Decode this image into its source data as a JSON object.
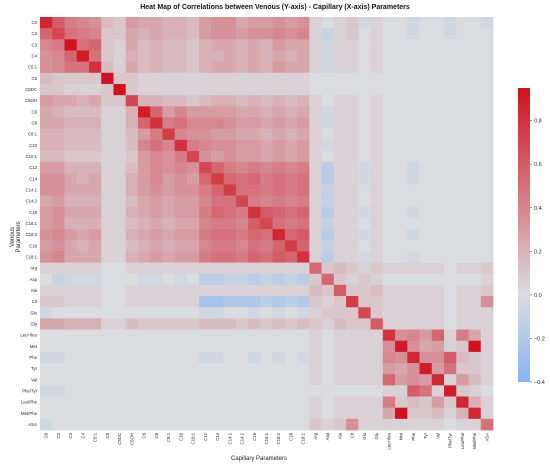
{
  "chart_data": {
    "type": "heatmap",
    "title": "Heat Map of Correlations between Venous (Y-axis) - Capillary (X-axis) Parameters",
    "xlabel": "Capillary Parameters",
    "ylabel": "Venous Parameters",
    "x_labels": [
      "C0",
      "C2",
      "C3",
      "C4",
      "C5:1",
      "C5",
      "C5DC",
      "C5OH",
      "C6",
      "C8",
      "C8:1",
      "C10",
      "C10:1",
      "C12",
      "C14",
      "C14:1",
      "C14:2",
      "C16",
      "C16:1",
      "C18:2",
      "C18",
      "C18:1",
      "Arg",
      "Asp",
      "Ala",
      "Cit",
      "Glu",
      "Gly",
      "Leu+Ileu",
      "Met",
      "Phe",
      "Tyr",
      "Val",
      "Phe/Tyr",
      "Leu/Phe",
      "Met/Phe",
      "ASA"
    ],
    "y_labels": [
      "C0",
      "C2",
      "C3",
      "C4",
      "C5:1",
      "C5",
      "C5DC",
      "C5OH",
      "C6",
      "C8",
      "C8:1",
      "C10",
      "C10:1",
      "C12",
      "C14",
      "C14:1",
      "C14:2",
      "C16",
      "C16:1",
      "C18:2",
      "C18",
      "C18:1",
      "Arg",
      "Asp",
      "Ala",
      "Cit",
      "Glu",
      "Gly",
      "Leu+Ileu",
      "Met",
      "Phe",
      "Tyr",
      "Val",
      "Phe/Tyr",
      "Leu/Phe",
      "Met/Phe",
      "ASA"
    ],
    "colorbar_ticks": [
      -0.4,
      -0.2,
      0.0,
      0.2,
      0.4,
      0.6,
      0.8
    ],
    "colorbar_ticklabels": [
      "−0.4",
      "−0.2",
      "0.0",
      "0.2",
      "0.4",
      "0.6",
      "0.8"
    ],
    "vmin": -0.4,
    "vmax": 0.95,
    "colormap": [
      "#87b4f2",
      "#dadcdf",
      "#d0111f"
    ],
    "values": [
      [
        0.85,
        0.6,
        0.45,
        0.4,
        0.35,
        0.15,
        0.1,
        0.3,
        0.25,
        0.25,
        0.2,
        0.2,
        0.15,
        0.3,
        0.35,
        0.35,
        0.25,
        0.3,
        0.3,
        0.35,
        0.3,
        0.35,
        0.05,
        0.0,
        0.05,
        0.1,
        -0.05,
        0.05,
        0,
        0,
        -0.05,
        0,
        0,
        -0.05,
        0,
        0,
        -0.05
      ],
      [
        0.55,
        0.7,
        0.5,
        0.45,
        0.4,
        0.1,
        0.1,
        0.25,
        0.2,
        0.25,
        0.2,
        0.2,
        0.15,
        0.3,
        0.35,
        0.35,
        0.3,
        0.35,
        0.35,
        0.4,
        0.35,
        0.4,
        0.05,
        -0.1,
        0.05,
        0.1,
        0,
        0.05,
        0,
        0,
        -0.05,
        0,
        0,
        -0.05,
        0,
        0,
        0
      ],
      [
        0.4,
        0.45,
        0.95,
        0.5,
        0.55,
        0.1,
        0.05,
        0.25,
        0.15,
        0.2,
        0.15,
        0.15,
        0.1,
        0.2,
        0.25,
        0.25,
        0.2,
        0.25,
        0.2,
        0.3,
        0.25,
        0.25,
        0.05,
        -0.05,
        0.05,
        0.05,
        0,
        0.05,
        0,
        0,
        0,
        0,
        0,
        0,
        0,
        0,
        0
      ],
      [
        0.35,
        0.4,
        0.55,
        0.9,
        0.5,
        0.1,
        0.05,
        0.2,
        0.15,
        0.2,
        0.15,
        0.15,
        0.1,
        0.2,
        0.2,
        0.25,
        0.2,
        0.25,
        0.2,
        0.25,
        0.2,
        0.25,
        0.05,
        -0.05,
        0.05,
        0.05,
        0,
        0.05,
        0,
        0,
        0,
        0,
        0,
        0,
        0,
        0,
        0
      ],
      [
        0.35,
        0.4,
        0.5,
        0.5,
        0.8,
        0.15,
        0.05,
        0.25,
        0.15,
        0.2,
        0.15,
        0.15,
        0.1,
        0.2,
        0.25,
        0.25,
        0.2,
        0.25,
        0.2,
        0.3,
        0.25,
        0.25,
        0.05,
        -0.05,
        0.05,
        0.05,
        0,
        0.05,
        0,
        0,
        0,
        0,
        0,
        0,
        0,
        0,
        0
      ],
      [
        0.15,
        0.1,
        0.1,
        0.1,
        0.1,
        0.95,
        0.1,
        0.1,
        0.05,
        0.05,
        0.05,
        0.05,
        0.05,
        0.05,
        0.05,
        0.05,
        0.05,
        0.05,
        0.05,
        0.05,
        0.05,
        0.05,
        0,
        0,
        0,
        0,
        0,
        0,
        0,
        0,
        0,
        0,
        0,
        0,
        0,
        0,
        0
      ],
      [
        0.1,
        0.1,
        0.05,
        0.05,
        0.05,
        0.1,
        0.95,
        0.1,
        0.05,
        0.05,
        0.05,
        0.05,
        0.05,
        0.05,
        0.05,
        0.05,
        0.05,
        0.05,
        0.05,
        0.05,
        0.05,
        0.05,
        0,
        0,
        0,
        0,
        0,
        0,
        0,
        0,
        0,
        0,
        0,
        0,
        0,
        0,
        0
      ],
      [
        0.3,
        0.25,
        0.25,
        0.2,
        0.25,
        0.1,
        0.1,
        0.7,
        0.2,
        0.2,
        0.15,
        0.15,
        0.1,
        0.15,
        0.2,
        0.2,
        0.15,
        0.2,
        0.15,
        0.2,
        0.15,
        0.2,
        0.05,
        0,
        0.05,
        0.05,
        0,
        0.05,
        0,
        0,
        0,
        0,
        0,
        0,
        0,
        0,
        0
      ],
      [
        0.25,
        0.2,
        0.15,
        0.15,
        0.15,
        0.05,
        0.05,
        0.2,
        0.9,
        0.55,
        0.3,
        0.4,
        0.3,
        0.3,
        0.3,
        0.3,
        0.25,
        0.25,
        0.2,
        0.25,
        0.2,
        0.25,
        0.05,
        -0.05,
        0.05,
        0.05,
        0,
        0.05,
        0,
        0,
        0,
        0,
        0,
        0,
        0,
        0,
        0
      ],
      [
        0.25,
        0.25,
        0.2,
        0.2,
        0.2,
        0.05,
        0.05,
        0.2,
        0.55,
        0.8,
        0.45,
        0.5,
        0.4,
        0.4,
        0.4,
        0.35,
        0.3,
        0.3,
        0.25,
        0.3,
        0.25,
        0.3,
        0.05,
        -0.05,
        0.05,
        0.05,
        0,
        0.05,
        0,
        0,
        0,
        0,
        0,
        0,
        0,
        0,
        0
      ],
      [
        0.2,
        0.2,
        0.15,
        0.15,
        0.15,
        0.05,
        0.05,
        0.15,
        0.3,
        0.45,
        0.75,
        0.4,
        0.35,
        0.35,
        0.3,
        0.3,
        0.25,
        0.25,
        0.2,
        0.25,
        0.2,
        0.25,
        0.05,
        0,
        0.05,
        0.05,
        0,
        0.05,
        0,
        0,
        0,
        0,
        0,
        0,
        0,
        0,
        0
      ],
      [
        0.2,
        0.2,
        0.15,
        0.15,
        0.15,
        0.05,
        0.05,
        0.15,
        0.4,
        0.5,
        0.4,
        0.8,
        0.45,
        0.4,
        0.35,
        0.35,
        0.3,
        0.3,
        0.25,
        0.3,
        0.25,
        0.3,
        0.05,
        -0.05,
        0.05,
        0.05,
        0,
        0.05,
        0,
        0,
        0,
        0,
        0,
        0,
        0,
        0,
        0
      ],
      [
        0.15,
        0.15,
        0.1,
        0.1,
        0.1,
        0.05,
        0.05,
        0.1,
        0.3,
        0.4,
        0.35,
        0.45,
        0.7,
        0.35,
        0.3,
        0.35,
        0.3,
        0.3,
        0.25,
        0.3,
        0.25,
        0.3,
        0.05,
        0,
        0.05,
        0.05,
        0,
        0.05,
        0,
        0,
        0,
        0,
        0,
        0,
        0,
        0,
        0
      ],
      [
        0.3,
        0.3,
        0.2,
        0.2,
        0.2,
        0.05,
        0.05,
        0.15,
        0.3,
        0.4,
        0.35,
        0.4,
        0.35,
        0.7,
        0.55,
        0.45,
        0.4,
        0.45,
        0.4,
        0.45,
        0.4,
        0.45,
        0.05,
        -0.15,
        0.05,
        0.05,
        -0.05,
        0.05,
        0,
        0,
        -0.05,
        0,
        0,
        0,
        0,
        0,
        0
      ],
      [
        0.35,
        0.35,
        0.25,
        0.2,
        0.25,
        0.05,
        0.05,
        0.2,
        0.3,
        0.4,
        0.3,
        0.35,
        0.3,
        0.55,
        0.75,
        0.55,
        0.5,
        0.55,
        0.45,
        0.5,
        0.45,
        0.5,
        0.05,
        -0.15,
        0.05,
        0.05,
        -0.05,
        0.05,
        0,
        0,
        -0.05,
        0,
        0,
        0,
        0,
        0,
        0
      ],
      [
        0.35,
        0.35,
        0.25,
        0.25,
        0.25,
        0.05,
        0.05,
        0.2,
        0.3,
        0.35,
        0.3,
        0.35,
        0.35,
        0.45,
        0.55,
        0.75,
        0.5,
        0.5,
        0.45,
        0.5,
        0.45,
        0.5,
        0.05,
        -0.1,
        0.05,
        0.05,
        0,
        0.05,
        0,
        0,
        0,
        0,
        0,
        0,
        0,
        0,
        0
      ],
      [
        0.25,
        0.3,
        0.2,
        0.2,
        0.2,
        0.05,
        0.05,
        0.15,
        0.25,
        0.3,
        0.25,
        0.3,
        0.3,
        0.4,
        0.5,
        0.5,
        0.7,
        0.45,
        0.4,
        0.45,
        0.4,
        0.45,
        0.05,
        -0.1,
        0.05,
        0.05,
        0,
        0.05,
        0,
        0,
        0,
        0,
        0,
        0,
        0,
        0,
        0
      ],
      [
        0.3,
        0.35,
        0.25,
        0.25,
        0.25,
        0.05,
        0.05,
        0.2,
        0.25,
        0.3,
        0.25,
        0.3,
        0.3,
        0.45,
        0.55,
        0.5,
        0.45,
        0.8,
        0.6,
        0.55,
        0.5,
        0.55,
        0.05,
        -0.15,
        0.05,
        0.05,
        -0.05,
        0.05,
        0,
        0,
        -0.05,
        0,
        0,
        0,
        0,
        0,
        0
      ],
      [
        0.3,
        0.35,
        0.2,
        0.2,
        0.2,
        0.05,
        0.05,
        0.15,
        0.2,
        0.25,
        0.2,
        0.25,
        0.25,
        0.4,
        0.45,
        0.45,
        0.4,
        0.6,
        0.7,
        0.5,
        0.45,
        0.5,
        0.05,
        -0.1,
        0.05,
        0.05,
        0,
        0.05,
        0,
        0,
        0,
        0,
        0,
        0,
        0,
        0,
        0
      ],
      [
        0.35,
        0.4,
        0.3,
        0.25,
        0.3,
        0.05,
        0.05,
        0.2,
        0.25,
        0.3,
        0.25,
        0.3,
        0.3,
        0.45,
        0.5,
        0.5,
        0.45,
        0.55,
        0.5,
        0.85,
        0.55,
        0.6,
        0.05,
        -0.15,
        0.05,
        0.05,
        -0.05,
        0.05,
        0,
        0,
        -0.05,
        0,
        0,
        0,
        0,
        0,
        0
      ],
      [
        0.3,
        0.35,
        0.25,
        0.2,
        0.25,
        0.05,
        0.05,
        0.15,
        0.2,
        0.25,
        0.2,
        0.25,
        0.25,
        0.4,
        0.45,
        0.45,
        0.4,
        0.5,
        0.45,
        0.55,
        0.75,
        0.55,
        0.05,
        -0.1,
        0.05,
        0.05,
        0,
        0.05,
        0,
        0,
        0,
        0,
        0,
        0,
        0,
        0,
        0
      ],
      [
        0.35,
        0.4,
        0.25,
        0.25,
        0.25,
        0.05,
        0.05,
        0.2,
        0.25,
        0.3,
        0.25,
        0.3,
        0.3,
        0.45,
        0.5,
        0.5,
        0.45,
        0.55,
        0.5,
        0.6,
        0.55,
        0.8,
        0.05,
        -0.15,
        0.05,
        0.05,
        -0.05,
        0.05,
        0,
        0,
        -0.05,
        0,
        0,
        0,
        0,
        0,
        0
      ],
      [
        0.05,
        0.05,
        0.05,
        0.05,
        0.05,
        0,
        0,
        0.05,
        0.05,
        0.05,
        0.05,
        0.05,
        0.05,
        0.05,
        0.05,
        0.05,
        0.05,
        0.05,
        0.05,
        0.05,
        0.05,
        0.05,
        0.55,
        0.1,
        0.15,
        0.1,
        0.05,
        0.1,
        0.05,
        0.05,
        0.05,
        0.05,
        0.05,
        0,
        0.05,
        0.05,
        0.1
      ],
      [
        0,
        -0.1,
        -0.05,
        -0.05,
        -0.05,
        0,
        0,
        0,
        -0.05,
        -0.05,
        0,
        -0.05,
        0,
        -0.15,
        -0.15,
        -0.1,
        -0.1,
        -0.15,
        -0.1,
        -0.15,
        -0.1,
        -0.15,
        0.1,
        0.55,
        0.1,
        0.05,
        0.1,
        0.05,
        0,
        0,
        0,
        0,
        0,
        0,
        0,
        0,
        0.05
      ],
      [
        0.05,
        0.05,
        0.05,
        0.05,
        0.05,
        0,
        0,
        0.05,
        0.05,
        0.05,
        0.05,
        0.05,
        0.05,
        0.05,
        0.05,
        0.05,
        0.05,
        0.05,
        0.05,
        0.05,
        0.05,
        0.05,
        0.15,
        0.1,
        0.6,
        0.1,
        0.1,
        0.15,
        0.05,
        0.05,
        0.05,
        0.05,
        0.05,
        0,
        0.05,
        0.05,
        0.1
      ],
      [
        0.1,
        0.1,
        0.05,
        0.05,
        0.05,
        0,
        0,
        0.05,
        0.05,
        0.05,
        0.05,
        0.05,
        0.05,
        -0.25,
        -0.25,
        -0.2,
        -0.2,
        -0.2,
        -0.15,
        -0.2,
        -0.15,
        -0.2,
        0.1,
        0.05,
        0.1,
        0.75,
        0.1,
        0.1,
        0.05,
        0.05,
        0.05,
        0.05,
        0.05,
        0,
        0.05,
        0.05,
        0.35
      ],
      [
        -0.05,
        0,
        0,
        0,
        0,
        0,
        0,
        0,
        0,
        0,
        0,
        0,
        0,
        -0.05,
        -0.05,
        0,
        0,
        -0.05,
        0,
        -0.05,
        0,
        -0.05,
        0.05,
        0.1,
        0.1,
        0.1,
        0.7,
        0.1,
        0.05,
        0.05,
        0.05,
        0.05,
        0.05,
        0,
        0.05,
        0.05,
        0.05
      ],
      [
        0.25,
        0.25,
        0.2,
        0.2,
        0.2,
        0.05,
        0.05,
        0.15,
        0.1,
        0.1,
        0.1,
        0.1,
        0.1,
        0.15,
        0.15,
        0.15,
        0.1,
        0.15,
        0.1,
        0.15,
        0.1,
        0.15,
        0.1,
        0.05,
        0.15,
        0.1,
        0.1,
        0.6,
        0.05,
        0.05,
        0.05,
        0.05,
        0.05,
        0,
        0.05,
        0.05,
        0.05
      ],
      [
        0,
        0,
        0,
        0,
        0,
        0,
        0,
        0,
        0,
        0,
        0,
        0,
        0,
        0,
        0,
        0,
        0,
        0,
        0,
        0,
        0,
        0,
        0.05,
        0,
        0.05,
        0.05,
        0.05,
        0.05,
        0.8,
        0.35,
        0.4,
        0.3,
        0.55,
        0.05,
        0.45,
        0.25,
        0.05
      ],
      [
        0,
        0,
        0,
        0,
        0,
        0,
        0,
        0,
        0,
        0,
        0,
        0,
        0,
        0,
        0,
        0,
        0,
        0,
        0,
        0,
        0,
        0,
        0.05,
        0,
        0.05,
        0.05,
        0.05,
        0.05,
        0.35,
        0.9,
        0.35,
        0.25,
        0.3,
        0.05,
        0.1,
        0.95,
        0.05
      ],
      [
        -0.05,
        -0.05,
        0,
        0,
        0,
        0,
        0,
        0,
        0,
        0,
        0,
        0,
        0,
        -0.05,
        -0.05,
        0,
        0,
        -0.05,
        0,
        -0.05,
        0,
        -0.05,
        0.05,
        0,
        0.05,
        0.05,
        0.05,
        0.05,
        0.4,
        0.35,
        0.85,
        0.35,
        0.35,
        0.6,
        0.15,
        0.1,
        0.05
      ],
      [
        0,
        0,
        0,
        0,
        0,
        0,
        0,
        0,
        0,
        0,
        0,
        0,
        0,
        0,
        0,
        0,
        0,
        0,
        0,
        0,
        0,
        0,
        0.05,
        0,
        0.05,
        0.05,
        0.05,
        0.05,
        0.3,
        0.25,
        0.35,
        0.9,
        0.3,
        0.5,
        0.1,
        0.1,
        0.05
      ],
      [
        0,
        0,
        0,
        0,
        0,
        0,
        0,
        0,
        0,
        0,
        0,
        0,
        0,
        0,
        0,
        0,
        0,
        0,
        0,
        0,
        0,
        0,
        0.05,
        0,
        0.05,
        0.05,
        0.05,
        0.05,
        0.55,
        0.3,
        0.35,
        0.3,
        0.85,
        0.05,
        0.3,
        0.15,
        0.05
      ],
      [
        -0.05,
        -0.05,
        0,
        0,
        0,
        0,
        0,
        0,
        0,
        0,
        0,
        0,
        0,
        0,
        0,
        0,
        0,
        0,
        0,
        0,
        0,
        0,
        0,
        0,
        0,
        0,
        0,
        0,
        0.05,
        0.05,
        0.6,
        0.5,
        0.05,
        0.9,
        0.1,
        0.05,
        0
      ],
      [
        0,
        0,
        0,
        0,
        0,
        0,
        0,
        0,
        0,
        0,
        0,
        0,
        0,
        0,
        0,
        0,
        0,
        0,
        0,
        0,
        0,
        0,
        0.05,
        0,
        0.05,
        0.05,
        0.05,
        0.05,
        0.45,
        0.1,
        0.15,
        0.1,
        0.3,
        0.1,
        0.85,
        0.2,
        0.05
      ],
      [
        0,
        0,
        0,
        0,
        0,
        0,
        0,
        0,
        0,
        0,
        0,
        0,
        0,
        0,
        0,
        0,
        0,
        0,
        0,
        0,
        0,
        0,
        0.05,
        0,
        0.05,
        0.05,
        0.05,
        0.05,
        0.25,
        0.95,
        0.1,
        0.1,
        0.15,
        0.05,
        0.2,
        0.85,
        0.05
      ],
      [
        -0.05,
        0,
        0,
        0,
        0,
        0,
        0,
        0,
        0,
        0,
        0,
        0,
        0,
        0,
        0,
        0,
        0,
        0,
        0,
        0,
        0,
        0,
        0.1,
        0.05,
        0.1,
        0.35,
        0.05,
        0.05,
        0.05,
        0.05,
        0.05,
        0.05,
        0.05,
        0,
        0.05,
        0.05,
        0.5
      ]
    ]
  }
}
